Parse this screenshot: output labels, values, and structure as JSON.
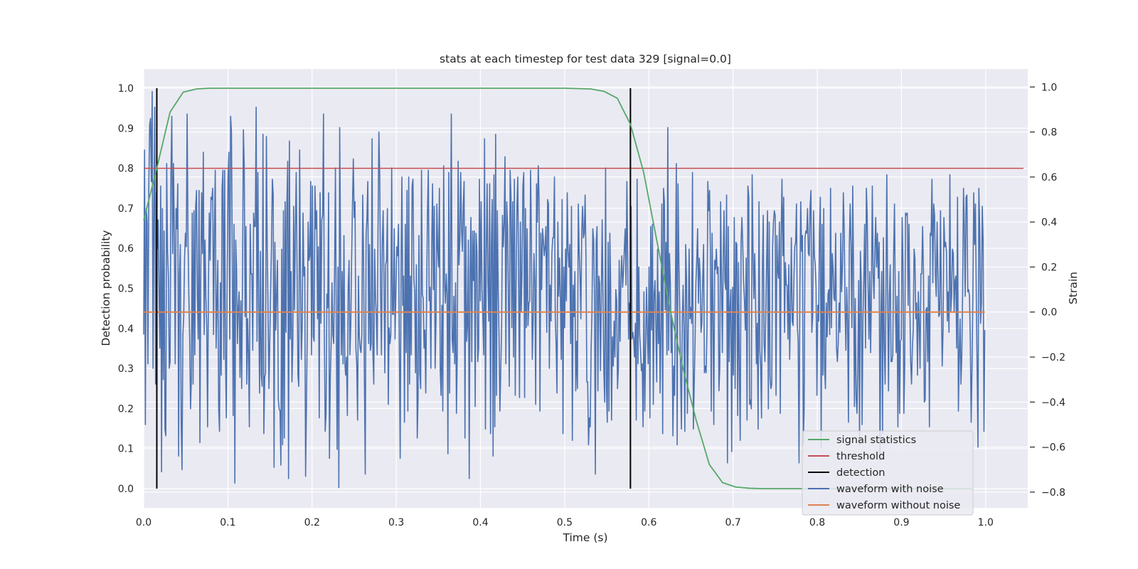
{
  "chart_data": {
    "type": "line",
    "title": "stats at each timestep for test data 329 [signal=0.0]",
    "xlabel": "Time (s)",
    "ylabel": "Detection probability",
    "y2label": "Strain",
    "xlim": [
      0.0,
      1.05
    ],
    "ylim": [
      -0.048,
      1.048
    ],
    "y2lim": [
      -0.87,
      1.08
    ],
    "grid": true,
    "legend_position": "lower right",
    "x_ticks": [
      "0.0",
      "0.1",
      "0.2",
      "0.3",
      "0.4",
      "0.5",
      "0.6",
      "0.7",
      "0.8",
      "0.9",
      "1.0"
    ],
    "y_ticks": [
      "0.0",
      "0.1",
      "0.2",
      "0.3",
      "0.4",
      "0.5",
      "0.6",
      "0.7",
      "0.8",
      "0.9",
      "1.0"
    ],
    "y2_ticks": [
      "−0.8",
      "−0.6",
      "−0.4",
      "−0.2",
      "0.0",
      "0.2",
      "0.4",
      "0.6",
      "0.8",
      "1.0"
    ],
    "colors": {
      "background": "#eaeaf2",
      "grid": "#ffffff",
      "signal_statistics": "#55a868",
      "threshold": "#c44e52",
      "detection": "#000000",
      "waveform_with_noise": "#4c72b0",
      "waveform_without_noise": "#dd8452"
    },
    "series": [
      {
        "name": "signal statistics",
        "axis": "left",
        "x": [
          0.0,
          0.0156,
          0.0313,
          0.0469,
          0.0625,
          0.0781,
          0.0938,
          0.5,
          0.5313,
          0.5469,
          0.5625,
          0.5781,
          0.5938,
          0.6094,
          0.625,
          0.6406,
          0.6563,
          0.6719,
          0.6875,
          0.7031,
          0.7188,
          0.7344,
          0.75,
          0.9844
        ],
        "values": [
          0.67,
          0.8,
          0.94,
          0.99,
          0.998,
          1.0,
          1.0,
          1.0,
          0.998,
          0.992,
          0.975,
          0.91,
          0.79,
          0.62,
          0.45,
          0.3,
          0.17,
          0.06,
          0.015,
          0.004,
          0.001,
          0.0,
          0.0,
          0.0
        ]
      },
      {
        "name": "threshold",
        "axis": "left",
        "x": [
          0.0,
          1.045
        ],
        "values": [
          0.8,
          0.8
        ]
      },
      {
        "name": "detection",
        "axis": "left",
        "x_positions": [
          0.0156,
          0.5781
        ],
        "y_range": [
          0.0,
          1.0
        ]
      },
      {
        "name": "waveform with noise",
        "axis": "right",
        "x_range": [
          0.0,
          0.999
        ],
        "n_points": 1000,
        "approx_std": 0.25,
        "values": [
          -0.1,
          0.72,
          -0.5,
          0.46,
          0.4,
          -0.23,
          0.55,
          0.83,
          0.86,
          0.58,
          0.98,
          -0.25,
          0.45,
          0.91,
          -0.32,
          0.53,
          0.28,
          0.41,
          0.1,
          -0.16,
          0.56,
          -0.71,
          0.46,
          -0.3,
          0.36,
          -0.52,
          -0.55,
          0.66,
          0.27,
          0.16,
          -0.25,
          -0.22,
          0.61,
          0.87,
          0.26,
          0.66,
          0.33,
          -0.23,
          0.46,
          0.37,
          0.57,
          -0.64,
          0.17,
          0.3,
          -0.48,
          -0.7,
          -0.1,
          -0.02,
          0.24,
          0.35,
          0.29,
          0.88,
          0.33,
          0.07,
          -0.12,
          -0.43,
          -0.29,
          0.44,
          -0.32,
          0.45,
          -0.19,
          0.47,
          0.54,
          0.07,
          -0.12,
          0.54,
          -0.58,
          0.18,
          0.53,
          0.26,
          0.71,
          -0.1,
          0.32,
          0.07,
          -0.07,
          -0.51,
          0.12,
          0.44,
          0.23,
          0.51,
          0.5,
          0.55,
          -0.1,
          0.37,
          0.63,
          -0.16,
          0.04,
          0.23,
          -0.43,
          -0.53,
          0.13,
          -0.28,
          0.55,
          0.63,
          -0.21,
          0.63,
          -0.2,
          -0.47,
          0.12,
          0.6,
          0.71,
          -0.12,
          0.87,
          0.8,
          0.23,
          -0.46,
          0.39,
          -0.76,
          0.32,
          0.19,
          -0.14,
          0.02,
          0.09,
          -0.29,
          0.05,
          -0.34,
          0.17,
          0.81,
          0.65,
          -0.02,
          0.38,
          -0.32,
          -0.03,
          -0.19,
          -0.51,
          0.39,
          0.17,
          0.17,
          -0.17,
          0.44,
          0.38,
          0.38,
          0.91,
          -0.13,
          0.62,
          0.03,
          -0.36,
          0.27,
          -0.28,
          -0.33,
          0.79,
          -0.54,
          -0.29,
          -0.27,
          0.78,
          0.28,
          -0.01,
          -0.34,
          -0.12,
          0.1,
          0.3,
          0.59,
          0.52,
          -0.69,
          0.31,
          -0.08,
          0.08,
          0.23,
          -0.39,
          -0.43,
          -0.44,
          -0.68,
          0.28,
          -0.59,
          0.45,
          -0.56,
          0.49,
          -0.09,
          0.47,
          0.67,
          -0.74,
          0.76,
          -0.12,
          0.18,
          -0.31,
          -0.14,
          0.47,
          0.01,
          0.37,
          0.62,
          0.19,
          -0.28,
          -0.33,
          0.72,
          0.16,
          -0.21,
          -0.06,
          0.44,
          0.16,
          0.2,
          -0.73,
          -0.41,
          -0.07,
          0.4,
          0.23,
          0.25,
          0.58,
          -0.19,
          0.56,
          -0.11,
          -0.13,
          0.56,
          0.37,
          0.45,
          -0.03,
          0.29,
          -0.47,
          0.53,
          -0.05,
          0.41,
          0.43,
          0.88,
          -0.1,
          -0.53,
          -0.45,
          0.08,
          0.02,
          0.53,
          -0.65,
          -0.29,
          -0.14,
          0.13,
          -0.1,
          -0.14,
          0.18,
          0.64,
          -0.05,
          -0.61,
          0.2,
          -0.78,
          0.82,
          0.29,
          -0.19,
          0.18,
          -0.23,
          0.34,
          -0.22,
          -0.28,
          -0.2,
          -0.46,
          0.11,
          0.23,
          -0.19,
          -0.06,
          0.23,
          0.47,
          0.68,
          0.42,
          0.49,
          -0.16,
          -0.23,
          -0.48,
          0.16,
          -0.11,
          -0.16,
          -0.18,
          -0.1,
          0.52,
          0.24,
          -0.3,
          -0.72,
          0.34,
          0.42,
          0.58,
          -0.14,
          0.3,
          -0.17,
          -0.14,
          0.77,
          -0.18,
          -0.32,
          0.28,
          0.07,
          -0.02,
          -0.19,
          0.37,
          0.8,
          0.6,
          0.1,
          -0.19,
          0.31,
          0.45,
          0.14,
          -0.27,
          0.21,
          0.23,
          0.46,
          -0.41,
          -0.07,
          -0.14,
          -0.1,
          0.64,
          -0.01,
          -0.01,
          0.37,
          -0.12,
          0.1,
          0.29,
          0.25,
          0.39,
          -0.16,
          -0.65,
          0.18,
          0.6,
          0.03,
          0.16,
          -0.49,
          0.39,
          -0.18,
          0.54,
          -0.44,
          0.6,
          -0.32,
          0.16,
          -0.19,
          0.56,
          0.59,
          0.15,
          0.09,
          -0.27,
          0.21,
          -0.56,
          -0.38,
          0.34,
          -0.27,
          -0.34,
          0.63,
          0.08,
          0.06,
          -0.16,
          -0.08,
          -0.36,
          0.07,
          0.44,
          0.63,
          0.05,
          0.11,
          -0.25,
          0.3,
          0.57,
          0.1,
          0.47,
          -0.25,
          -0.04,
          0.48,
          0.28,
          0.2,
          0.55,
          -0.26,
          -0.37,
          0.03,
          -0.44,
          0.65,
          0.13,
          0.04,
          0.17,
          0.08,
          -0.63,
          0.62,
          -0.36,
          0.29,
          0.88,
          -0.12,
          -0.18,
          0.07,
          -0.23,
          0.13,
          -0.45,
          -0.18,
          0.67,
          0.21,
          0.32,
          0.62,
          0.37,
          0.27,
          0.48,
          0.58,
          -0.56,
          0.38,
          -0.13,
          -0.06,
          0.32,
          -0.74,
          0.17,
          0.42,
          -0.22,
          0.36,
          0.14,
          0.36,
          -0.42,
          0.35,
          0.27,
          -0.22,
          -0.16,
          0.59,
          0.05,
          0.49,
          0.1,
          -0.02,
          -0.19,
          0.77,
          -0.52,
          0.26,
          0.57,
          0.13,
          -0.04,
          0.57,
          -0.54,
          0.3,
          0.5,
          -0.64,
          0.61,
          -0.51,
          0.79,
          -0.37,
          0.45,
          0.1,
          -0.11,
          -0.44,
          -0.26,
          -0.07,
          0.43,
          0.29,
          0.4,
          0.69,
          -0.23,
          0.49,
          0.38,
          0.06,
          -0.33,
          0.63,
          0.51,
          -0.07,
          0.49,
          -0.2,
          0.59,
          -0.37,
          0.12,
          0.47,
          0.6,
          0.13,
          -0.38,
          0.4,
          0.0,
          0.19,
          0.56,
          0.62,
          -0.38,
          0.46,
          -0.07,
          0.37,
          -0.06,
          0.04,
          0.05,
          0.63,
          0.31,
          -0.21,
          -0.04,
          0.26,
          0.13,
          -0.41,
          0.57,
          0.4,
          0.65,
          0.5,
          -0.44,
          0.35,
          0.1,
          0.37,
          0.32,
          0.25,
          0.29,
          0.38,
          -0.09,
          0.5,
          0.48,
          -0.25,
          0.12,
          -0.04,
          0.26,
          0.33,
          0.33,
          0.6,
          -0.03,
          -0.15,
          -0.36,
          0.4,
          0.07,
          0.24,
          0.06,
          -0.21,
          0.5,
          -0.54,
          0.2,
          -0.07,
          0.28,
          0.05,
          0.53,
          0.27,
          0.2,
          0.3,
          -0.14,
          0.47,
          -0.57,
          0.12,
          -0.02,
          0.18,
          -0.35,
          -0.13,
          -0.34,
          0.48,
          0.27,
          0.17,
          -0.03,
          0.35,
          0.47,
          0.33,
          0.35,
          0.52,
          0.24,
          -0.31,
          -0.31,
          -0.59,
          -0.47,
          -0.51,
          -0.17,
          -0.01,
          0.37,
          0.32,
          0.06,
          -0.72,
          0.31,
          0.38,
          -0.35,
          0.16,
          0.13,
          -0.26,
          0.06,
          0.41,
          0.07,
          -0.27,
          -0.4,
          0.64,
          -0.33,
          -0.49,
          0.31,
          -0.44,
          0.35,
          0.11,
          -0.48,
          -0.11,
          -0.24,
          -0.04,
          -0.2,
          0.1,
          0.05,
          -0.34,
          -0.25,
          0.23,
          -0.13,
          0.15,
          0.25,
          0.11,
          0.18,
          0.28,
          0.37,
          0.12,
          0.58,
          0.23,
          -0.12,
          0.04,
          0.01,
          0.47,
          -0.12,
          -0.09,
          -0.12,
          -0.2,
          -0.05,
          -0.48,
          0.59,
          -0.23,
          0.2,
          -0.1,
          -0.17,
          -0.26,
          -0.23,
          -0.51,
          0.09,
          -0.44,
          -0.16,
          0.11,
          -0.09,
          -0.23,
          0.2,
          -0.47,
          0.38,
          -0.08,
          0.39,
          -0.41,
          0.08,
          0.14,
          -0.07,
          -0.31,
          0.28,
          -0.14,
          0.09,
          -0.36,
          -0.07,
          0.48,
          -0.54,
          0.55,
          0.49,
          0.01,
          0.31,
          -0.19,
          0.82,
          -0.17,
          0.26,
          0.13,
          -0.18,
          -0.03,
          -0.55,
          -0.24,
          -0.37,
          0.13,
          0.66,
          -0.59,
          0.57,
          0.23,
          0.01,
          -0.27,
          -0.52,
          -0.04,
          0.12,
          -0.09,
          -0.53,
          0.3,
          0.14,
          -0.45,
          -0.08,
          0.28,
          -0.03,
          0.02,
          -0.05,
          0.62,
          -0.52,
          -0.32,
          -0.13,
          0.13,
          0.23,
          0.37,
          0.04,
          0.24,
          0.16,
          -0.09,
          -0.05,
          0.15,
          0.3,
          -0.27,
          -0.24,
          -0.27,
          -0.07,
          0.58,
          0.45,
          0.54,
          0.27,
          -0.44,
          0.35,
          -0.01,
          -0.5,
          0.23,
          0.19,
          0.28,
          0.17,
          0.2,
          -0.35,
          -0.25,
          0.49,
          0.16,
          -0.18,
          0.22,
          0.45,
          0.14,
          0.1,
          0.52,
          -0.67,
          0.38,
          -0.22,
          0.02,
          0.1,
          -0.62,
          0.11,
          -0.28,
          0.42,
          -0.34,
          0.31,
          0.3,
          -0.46,
          0.22,
          -0.28,
          -0.57,
          0.31,
          0.42,
          0.29,
          0.13,
          0.05,
          -0.08,
          0.24,
          -0.48,
          0.56,
          0.51,
          -0.41,
          -0.39,
          -0.43,
          0.61,
          0.28,
          0.06,
          0.26,
          0.05,
          -0.23,
          -0.05,
          -0.52,
          0.49,
          -0.17,
          -0.24,
          -0.47,
          0.18,
          0.43,
          -0.14,
          -0.22,
          -0.01,
          0.23,
          0.45,
          -0.43,
          0.4,
          -0.29,
          -0.34,
          -0.32,
          0.29,
          0.4,
          0.45,
          0.43,
          -0.37,
          0.34,
          0.18,
          0.15,
          0.4,
          -0.45,
          0.33,
          0.59,
          0.25,
          0.51,
          -0.09,
          0.22,
          0.12,
          0.12,
          -0.12,
          0.21,
          -0.21,
          0.01,
          0.33,
          -0.04,
          -0.06,
          0.15,
          0.29,
          0.31,
          0.48,
          -0.06,
          -0.13,
          -0.67,
          0.12,
          0.49,
          0.27,
          0.34,
          -0.59,
          -0.43,
          0.33,
          0.36,
          0.35,
          0.46,
          0.26,
          0.25,
          0.47,
          0.54,
          -0.09,
          -0.02,
          0.45,
          0.25,
          0.21,
          0.11,
          -0.37,
          0.03,
          -0.04,
          0.34,
          0.51,
          -0.6,
          0.39,
          -0.28,
          0.46,
          -0.25,
          -0.34,
          0.04,
          -0.11,
          0.08,
          0.1,
          -0.1,
          0.55,
          -0.07,
          0.26,
          0.19,
          0.06,
          0.05,
          0.35,
          -0.16,
          -0.22,
          -0.14,
          0.04,
          -0.09,
          0.35,
          0.09,
          0.21,
          0.53,
          0.37,
          0.03,
          -0.17,
          0.11,
          -0.04,
          -0.49,
          0.29,
          0.48,
          0.29,
          -0.07,
          0.56,
          0.17,
          -0.42,
          0.06,
          -0.38,
          -0.45,
          -0.23,
          0.14,
          -0.59,
          0.27,
          0.13,
          -0.5,
          -0.03,
          0.14,
          0.39,
          -0.16,
          0.55,
          0.43,
          0.12,
          -0.12,
          0.18,
          -0.18,
          0.09,
          0.56,
          0.17,
          0.06,
          0.28,
          0.42,
          0.2,
          0.35,
          0.15,
          0.31,
          -0.66,
          -0.03,
          0.18,
          -0.54,
          0.33,
          -0.14,
          -0.32,
          0.09,
          0.61,
          0.08,
          -0.35,
          0.07,
          0.21,
          -0.22,
          -0.22,
          -0.19,
          0.26,
          0.48,
          0.05,
          -0.18,
          0.07,
          -0.51,
          0.18,
          -0.45,
          -0.13,
          -0.12,
          0.42,
          0.22,
          -0.45,
          -0.24,
          0.44,
          0.43,
          0.44,
          0.03,
          0.39,
          0.04,
          -0.22,
          -0.32,
          -0.16,
          -0.08,
          0.28,
          0.24,
          -0.03,
          0.04,
          -0.28,
          0.09,
          -0.05,
          -0.25,
          0.17,
          0.17,
          0.38,
          0.18,
          -0.4,
          -0.39,
          0.01,
          0.02,
          -0.22,
          0.16,
          -0.51,
          0.35,
          0.34,
          0.59,
          0.13,
          0.48,
          0.43,
          0.17,
          0.07,
          0.4,
          0.18,
          -0.02,
          -0.01,
          0.45,
          0.04,
          -0.24,
          -0.08,
          0.42,
          0.29,
          0.31,
          0.27,
          -0.04,
          0.09,
          -0.09,
          0.61,
          0.0,
          0.07,
          0.28,
          0.26,
          0.0,
          0.14,
          0.16,
          -0.16,
          0.51,
          -0.44,
          -0.2,
          -0.03,
          -0.32,
          -0.19,
          0.09,
          0.55,
          0.37,
          0.07,
          0.51,
          0.52,
          0.09,
          0.1,
          0.07,
          -0.13,
          -0.49,
          -0.25,
          0.08,
          0.53,
          0.3,
          0.48,
          0.08,
          -0.26,
          -0.6,
          0.55,
          0.38,
          -0.05,
          0.04,
          0.47,
          0.32,
          -0.53,
          -0.08
        ]
      },
      {
        "name": "waveform without noise",
        "axis": "right",
        "x": [
          0.0,
          0.999
        ],
        "values": [
          0.0,
          0.0
        ]
      }
    ]
  }
}
